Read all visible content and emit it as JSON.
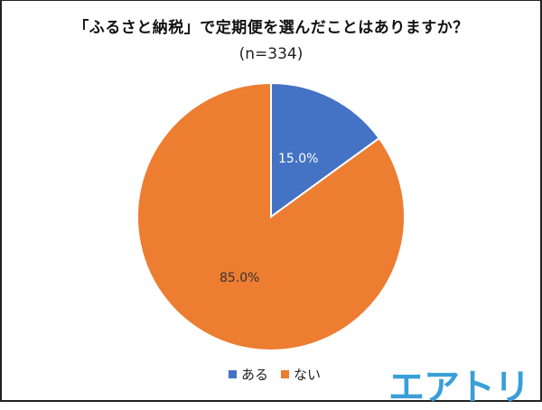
{
  "chart_data": {
    "type": "pie",
    "title": "「ふるさと納税」で定期便を選んだことはありますか？",
    "subtitle": "(n=334)",
    "categories": [
      "ある",
      "ない"
    ],
    "values": [
      15.0,
      85.0
    ],
    "labels": [
      "15.0%",
      "85.0%"
    ],
    "colors": [
      "#4472c4",
      "#ed7d31"
    ],
    "legend_position": "bottom",
    "start_angle": "12 o'clock, clockwise"
  },
  "legend": {
    "items": [
      {
        "label": "ある",
        "color": "#4472c4"
      },
      {
        "label": "ない",
        "color": "#ed7d31"
      }
    ]
  },
  "brand": {
    "logo_text": "エアトリ",
    "color": "#3a9fd8"
  }
}
